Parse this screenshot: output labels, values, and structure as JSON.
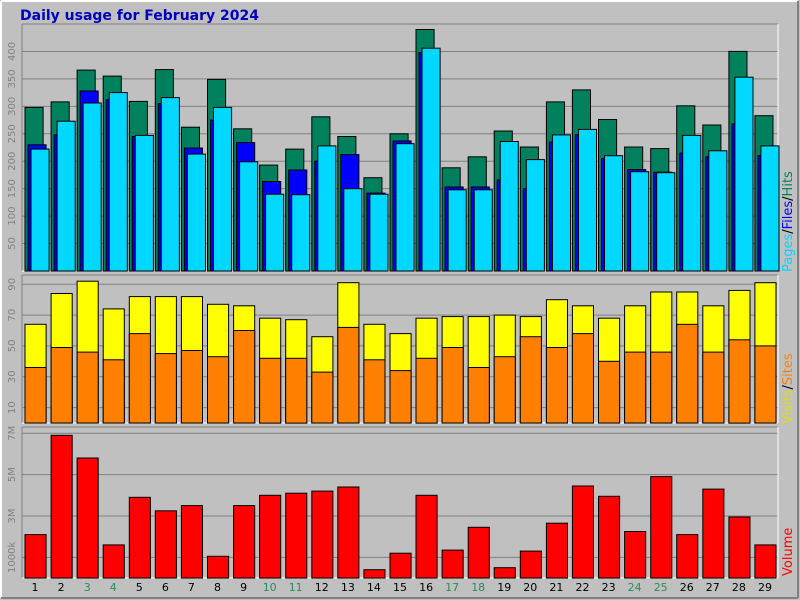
{
  "title": "Daily usage for February 2024",
  "colors": {
    "hits": "#00805c",
    "files": "#0000ff",
    "pages": "#00d8ff",
    "visits": "#ffff00",
    "sites": "#ff8000",
    "volume": "#ff0000",
    "weekend_label": "#2e8b57",
    "weekday_label": "#000000",
    "title": "#0000c0"
  },
  "side_labels": {
    "hits_panel": [
      "Pages",
      "/",
      "Files",
      "/",
      "Hits"
    ],
    "visits_panel": [
      "Visits",
      "/",
      "Sites"
    ],
    "volume_panel": [
      "Volume"
    ]
  },
  "chart_data": [
    {
      "type": "bar",
      "panel": "hits",
      "ylim": [
        0,
        450
      ],
      "yticks": [
        "50",
        "100",
        "150",
        "200",
        "250",
        "300",
        "350",
        "400"
      ],
      "categories": [
        "1",
        "2",
        "3",
        "4",
        "5",
        "6",
        "7",
        "8",
        "9",
        "10",
        "11",
        "12",
        "13",
        "14",
        "15",
        "16",
        "17",
        "18",
        "19",
        "20",
        "21",
        "22",
        "23",
        "24",
        "25",
        "26",
        "27",
        "28",
        "29"
      ],
      "weekend": [
        false,
        false,
        true,
        true,
        false,
        false,
        false,
        false,
        false,
        true,
        true,
        false,
        false,
        false,
        false,
        false,
        true,
        true,
        false,
        false,
        false,
        false,
        false,
        true,
        true,
        false,
        false,
        false,
        false
      ],
      "series": [
        {
          "name": "Hits",
          "values": [
            298,
            308,
            366,
            355,
            309,
            367,
            262,
            349,
            259,
            193,
            222,
            281,
            245,
            170,
            250,
            440,
            188,
            208,
            255,
            226,
            308,
            330,
            276,
            226,
            223,
            301,
            266,
            400,
            283
          ]
        },
        {
          "name": "Files",
          "values": [
            230,
            248,
            328,
            312,
            245,
            305,
            224,
            275,
            234,
            163,
            184,
            200,
            212,
            142,
            237,
            398,
            153,
            153,
            166,
            150,
            235,
            248,
            205,
            185,
            180,
            215,
            208,
            268,
            210
          ]
        },
        {
          "name": "Pages",
          "values": [
            222,
            273,
            306,
            325,
            247,
            316,
            213,
            298,
            199,
            140,
            139,
            228,
            150,
            140,
            232,
            406,
            148,
            148,
            236,
            203,
            248,
            258,
            210,
            181,
            179,
            247,
            219,
            353,
            228
          ]
        }
      ]
    },
    {
      "type": "bar",
      "panel": "visits",
      "ylim": [
        0,
        96
      ],
      "yticks": [
        "10",
        "30",
        "50",
        "70",
        "90"
      ],
      "categories": [
        "1",
        "2",
        "3",
        "4",
        "5",
        "6",
        "7",
        "8",
        "9",
        "10",
        "11",
        "12",
        "13",
        "14",
        "15",
        "16",
        "17",
        "18",
        "19",
        "20",
        "21",
        "22",
        "23",
        "24",
        "25",
        "26",
        "27",
        "28",
        "29"
      ],
      "series": [
        {
          "name": "Visits",
          "values": [
            64,
            84,
            92,
            74,
            82,
            82,
            82,
            77,
            76,
            68,
            67,
            56,
            91,
            64,
            58,
            68,
            69,
            69,
            70,
            69,
            80,
            76,
            68,
            76,
            85,
            85,
            76,
            86,
            91
          ]
        },
        {
          "name": "Sites",
          "values": [
            36,
            49,
            46,
            41,
            58,
            45,
            47,
            43,
            60,
            42,
            42,
            33,
            62,
            41,
            34,
            42,
            49,
            36,
            43,
            56,
            49,
            58,
            40,
            46,
            46,
            64,
            46,
            54,
            50
          ]
        }
      ]
    },
    {
      "type": "bar",
      "panel": "volume",
      "ylim": [
        0,
        7300000
      ],
      "yticks": [
        "1000k",
        "3M",
        "5M",
        "7M"
      ],
      "categories": [
        "1",
        "2",
        "3",
        "4",
        "5",
        "6",
        "7",
        "8",
        "9",
        "10",
        "11",
        "12",
        "13",
        "14",
        "15",
        "16",
        "17",
        "18",
        "19",
        "20",
        "21",
        "22",
        "23",
        "24",
        "25",
        "26",
        "27",
        "28",
        "29"
      ],
      "series": [
        {
          "name": "Volume",
          "values": [
            2100000,
            6900000,
            5800000,
            1600000,
            3900000,
            3250000,
            3500000,
            1050000,
            3500000,
            4000000,
            4100000,
            4200000,
            4400000,
            400000,
            1200000,
            4000000,
            1350000,
            2450000,
            500000,
            1300000,
            2650000,
            4450000,
            3950000,
            2250000,
            4900000,
            2100000,
            4300000,
            2950000,
            1600000
          ]
        }
      ]
    }
  ]
}
